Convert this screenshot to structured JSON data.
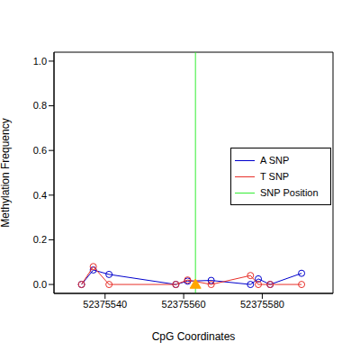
{
  "chart_data": {
    "type": "line",
    "x_label": "CpG Coordinates",
    "y_label": "Methylation Frequency",
    "xlim": [
      52375527,
      52375598
    ],
    "xticks": [
      52375540,
      52375560,
      52375580
    ],
    "ylim": [
      -0.04,
      1.04
    ],
    "yticks": [
      {
        "value": 0,
        "label": "0.0"
      },
      {
        "value": 0.2,
        "label": "0.2"
      },
      {
        "value": 0.4,
        "label": "0.4"
      },
      {
        "value": 0.6,
        "label": "0.6"
      },
      {
        "value": 0.8,
        "label": "0.8"
      },
      {
        "value": 1,
        "label": "1.0"
      }
    ],
    "legend": "right",
    "series": [
      {
        "name": "A SNP",
        "color": "#0000cd",
        "marker": "circle",
        "x": [
          52375534,
          52375537,
          52375541,
          52375558,
          52375561,
          52375567,
          52375577,
          52375579,
          52375582,
          52375590
        ],
        "values": [
          0.0,
          0.065,
          0.045,
          0.0,
          0.015,
          0.018,
          0.0,
          0.025,
          0.0,
          0.05
        ]
      },
      {
        "name": "T SNP",
        "color": "#e8302a",
        "marker": "circle",
        "x": [
          52375534,
          52375537,
          52375541,
          52375558,
          52375561,
          52375567,
          52375577,
          52375579,
          52375582,
          52375590
        ],
        "values": [
          0.0,
          0.08,
          0.0,
          0.0,
          0.02,
          0.0,
          0.04,
          0.0,
          0.0,
          0.0
        ]
      }
    ],
    "snp": {
      "name": "SNP Position",
      "color": "#33ee33",
      "marker": "triangle",
      "x": [
        52375563
      ],
      "values": [
        0
      ]
    }
  }
}
